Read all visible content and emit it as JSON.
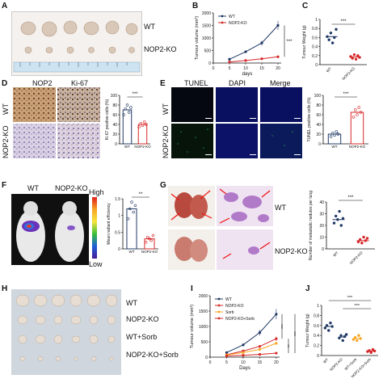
{
  "figure": {
    "panels": {
      "A": {
        "letter": "A",
        "row1_label": "WT",
        "row2_label": "NOP2-KO"
      },
      "B": {
        "letter": "B"
      },
      "C": {
        "letter": "C"
      },
      "D": {
        "letter": "D",
        "col1": "NOP2",
        "col2": "Ki-67",
        "row1": "WT",
        "row2": "NOP2-KO"
      },
      "E": {
        "letter": "E",
        "col1": "TUNEL",
        "col2": "DAPI",
        "col3": "Merge",
        "row1": "WT",
        "row2": "NOP2-KO"
      },
      "F": {
        "letter": "F",
        "col1": "WT",
        "col2": "NOP2-KO",
        "scale_high": "High",
        "scale_low": "Low"
      },
      "G": {
        "letter": "G",
        "row1": "WT",
        "row2": "NOP2-KO"
      },
      "H": {
        "letter": "H",
        "rows": [
          "WT",
          "NOP2-KO",
          "WT+Sorb",
          "NOP2-KO+Sorb"
        ]
      },
      "I": {
        "letter": "I"
      },
      "J": {
        "letter": "J"
      }
    },
    "colors": {
      "wt": "#1f3864",
      "ko": "#d62728",
      "sorb": "#f5a623",
      "kosorb": "#d62728",
      "tunel_bg": "#0a1060",
      "he_purple": "#b07ac8"
    }
  },
  "chart_data": [
    {
      "id": "B",
      "type": "line",
      "x": [
        5,
        10,
        15,
        20
      ],
      "series": [
        {
          "name": "WT",
          "values": [
            150,
            450,
            800,
            1500
          ]
        },
        {
          "name": "NOP2-KO",
          "values": [
            40,
            100,
            170,
            250
          ]
        }
      ],
      "ylabel": "Tumour volume (mm³)",
      "xlabel": "days",
      "xticks": [
        0,
        5,
        10,
        15,
        20
      ],
      "yticks": [
        0,
        500,
        1000,
        1500,
        2000
      ],
      "ylim": [
        0,
        2000
      ],
      "xlim": [
        0,
        21
      ],
      "significance": "***"
    },
    {
      "id": "C",
      "type": "scatter",
      "categories": [
        "WT",
        "NOP2-KO"
      ],
      "points": [
        [
          0.62,
          0.55,
          0.7,
          0.48,
          0.6,
          0.78
        ],
        [
          0.18,
          0.14,
          0.22,
          0.12,
          0.2,
          0.16
        ]
      ],
      "means": [
        0.62,
        0.17
      ],
      "ylabel": "Tumour Weight (g)",
      "yticks": [
        0,
        0.2,
        0.4,
        0.6,
        0.8,
        1.0
      ],
      "ylim": [
        0,
        1.0
      ],
      "significance": "***"
    },
    {
      "id": "D",
      "type": "bar",
      "categories": [
        "WT",
        "NOP2-KO"
      ],
      "values": [
        70,
        40
      ],
      "points": [
        [
          60,
          72,
          80,
          65,
          75
        ],
        [
          35,
          42,
          38,
          45,
          40
        ]
      ],
      "ylabel": "Ki-67 positive cells (%)",
      "yticks": [
        0,
        20,
        40,
        60,
        80,
        100
      ],
      "ylim": [
        0,
        100
      ],
      "significance": "***"
    },
    {
      "id": "E",
      "type": "bar",
      "categories": [
        "WT",
        "NOP2-KO"
      ],
      "values": [
        20,
        65
      ],
      "points": [
        [
          15,
          22,
          18,
          25,
          20
        ],
        [
          55,
          70,
          60,
          75,
          65
        ]
      ],
      "ylabel": "TUNEL positive cells (%)",
      "yticks": [
        0,
        20,
        40,
        60,
        80,
        100
      ],
      "ylim": [
        0,
        100
      ],
      "significance": "***"
    },
    {
      "id": "F",
      "type": "bar",
      "categories": [
        "WT",
        "NOP2-KO"
      ],
      "values": [
        1.2,
        0.3
      ],
      "points": [
        [
          0.9,
          1.2,
          1.4,
          1.1,
          1.3
        ],
        [
          0.2,
          0.35,
          0.3,
          0.25,
          0.4
        ]
      ],
      "ylabel": "Mean radiant efficiency",
      "yticks": [
        0,
        0.5,
        1.0,
        1.5
      ],
      "ylim": [
        0,
        1.5
      ],
      "significance": "**"
    },
    {
      "id": "G",
      "type": "scatter",
      "categories": [
        "WT",
        "NOP2-KO"
      ],
      "points": [
        [
          22,
          28,
          25,
          32,
          20,
          26
        ],
        [
          6,
          8,
          5,
          10,
          7,
          9
        ]
      ],
      "means": [
        25,
        7
      ],
      "ylabel": "Number of metastatic nodules per lung",
      "yticks": [
        0,
        10,
        20,
        30,
        40
      ],
      "ylim": [
        0,
        40
      ],
      "significance": "***"
    },
    {
      "id": "I",
      "type": "line",
      "x": [
        5,
        10,
        15,
        20
      ],
      "series": [
        {
          "name": "WT",
          "values": [
            150,
            400,
            800,
            1400
          ]
        },
        {
          "name": "NOP2-KO",
          "values": [
            80,
            200,
            350,
            600
          ]
        },
        {
          "name": "Sorb",
          "values": [
            70,
            150,
            250,
            450
          ]
        },
        {
          "name": "NOP2-KO+Sorb",
          "values": [
            40,
            60,
            90,
            130
          ]
        }
      ],
      "ylabel": "Tumour volume (mm³)",
      "xlabel": "Days",
      "xticks": [
        0,
        5,
        10,
        15,
        20
      ],
      "yticks": [
        0,
        500,
        1000,
        1500,
        2000
      ],
      "ylim": [
        0,
        2000
      ],
      "xlim": [
        0,
        21
      ],
      "significance": [
        "***",
        "**",
        "***"
      ]
    },
    {
      "id": "J",
      "type": "scatter",
      "categories": [
        "WT",
        "NOP2-KO",
        "WT+Sorb",
        "NOP2-KO+Sorb"
      ],
      "points": [
        [
          0.55,
          0.6,
          0.5,
          0.65,
          0.58
        ],
        [
          0.35,
          0.4,
          0.3,
          0.38,
          0.42
        ],
        [
          0.32,
          0.36,
          0.3,
          0.4,
          0.34
        ],
        [
          0.08,
          0.1,
          0.06,
          0.12,
          0.09
        ]
      ],
      "means": [
        0.58,
        0.37,
        0.34,
        0.09
      ],
      "ylabel": "Tumour Weight (g)",
      "yticks": [
        0,
        0.2,
        0.4,
        0.6,
        0.8,
        1.0
      ],
      "ylim": [
        0,
        1.0
      ],
      "significance": [
        "***",
        "***"
      ]
    }
  ]
}
